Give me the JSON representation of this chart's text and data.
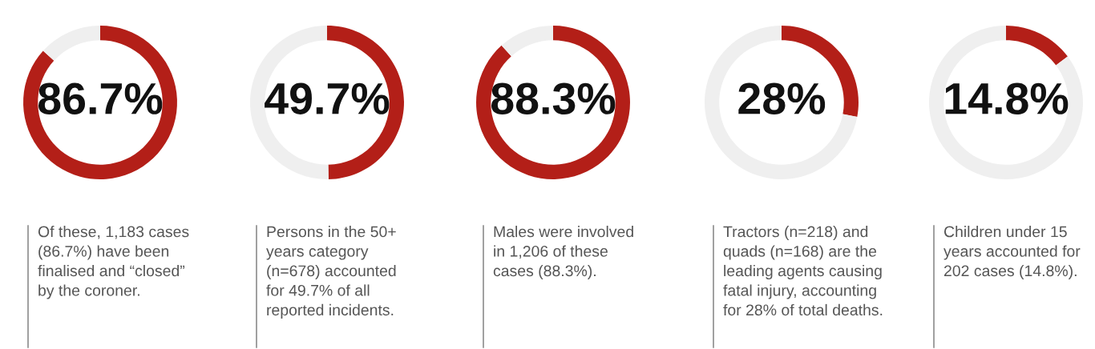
{
  "chart_data": [
    {
      "type": "donut",
      "categories": [
        null,
        null
      ],
      "values": [
        86.7,
        13.3
      ],
      "colors": [
        "#b31f18",
        "#efefef"
      ],
      "value_labels": [
        "86.7%",
        null
      ],
      "annotations": [
        "Of these, 1,183 cases\n(86.7%) have been\nfinalised and “closed”\nby the coroner."
      ]
    },
    {
      "type": "donut",
      "categories": [
        null,
        null
      ],
      "values": [
        49.7,
        50.3
      ],
      "colors": [
        "#b31f18",
        "#efefef"
      ],
      "value_labels": [
        "49.7%",
        null
      ],
      "annotations": [
        "Persons in the 50+\nyears category\n(n=678) accounted\nfor 49.7% of all\nreported incidents."
      ]
    },
    {
      "type": "donut",
      "categories": [
        null,
        null
      ],
      "values": [
        88.3,
        11.7
      ],
      "colors": [
        "#b31f18",
        "#efefef"
      ],
      "value_labels": [
        "88.3%",
        null
      ],
      "annotations": [
        "Males were involved\nin 1,206 of these\ncases (88.3%)."
      ]
    },
    {
      "type": "donut",
      "categories": [
        null,
        null
      ],
      "values": [
        28,
        72
      ],
      "colors": [
        "#b31f18",
        "#efefef"
      ],
      "value_labels": [
        "28%",
        null
      ],
      "annotations": [
        "Tractors (n=218) and\nquads (n=168) are the\nleading agents causing\nfatal injury, accounting\nfor 28% of total deaths."
      ]
    },
    {
      "type": "donut",
      "categories": [
        null,
        null
      ],
      "values": [
        14.8,
        85.2
      ],
      "colors": [
        "#b31f18",
        "#efefef"
      ],
      "value_labels": [
        "14.8%",
        null
      ],
      "annotations": [
        "Children under 15\nyears accounted for\n202 cases (14.8%)."
      ]
    }
  ]
}
